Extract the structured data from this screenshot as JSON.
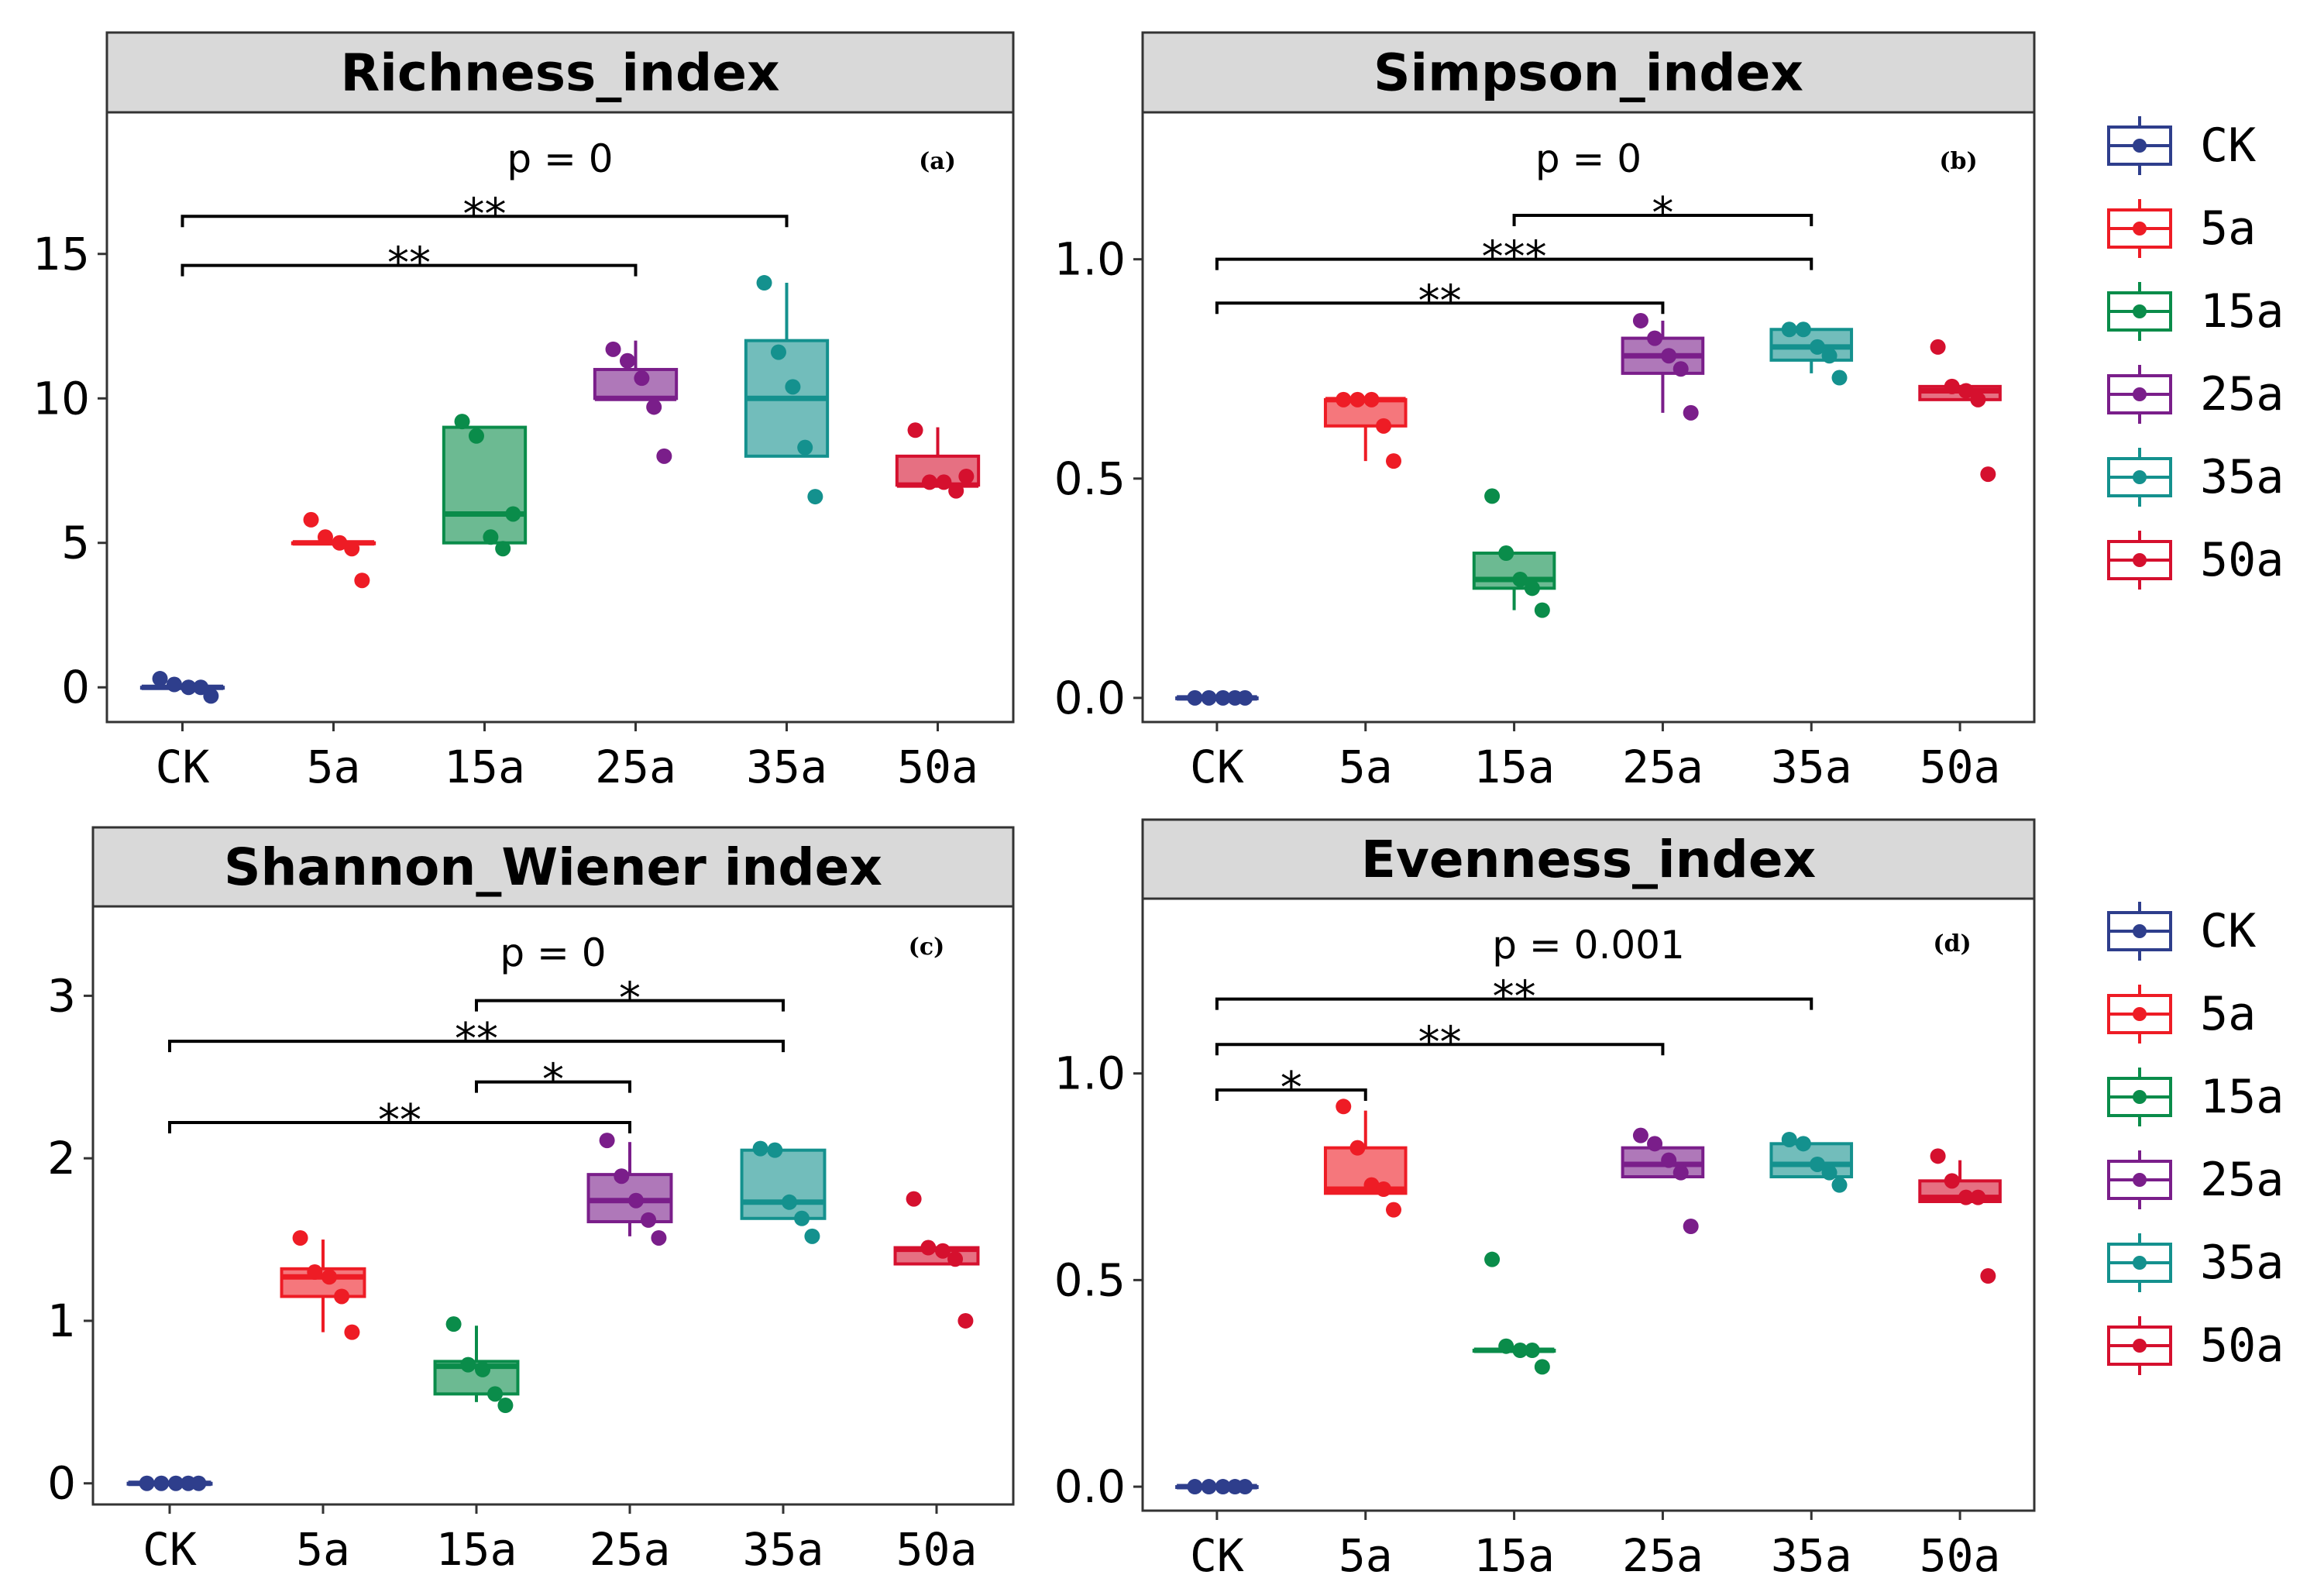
{
  "colors": {
    "CK": "#2E3E8C",
    "5a": "#EE1C25",
    "15a": "#0A8C4A",
    "25a": "#7A1E8A",
    "35a": "#14918E",
    "50a": "#D5102E"
  },
  "legend": [
    "CK",
    "5a",
    "15a",
    "25a",
    "35a",
    "50a"
  ],
  "chart_data": [
    {
      "type": "box",
      "title": "Richness_index",
      "panel_label": "(a)",
      "p_text": "p = 0",
      "categories": [
        "CK",
        "5a",
        "15a",
        "25a",
        "35a",
        "50a"
      ],
      "yticks": [
        "0",
        "5",
        "10",
        "15"
      ],
      "ytick_values": [
        0,
        5,
        10,
        15
      ],
      "ylim": [
        -1.2,
        19.9
      ],
      "boxes": [
        {
          "q1": 0,
          "median": 0,
          "q3": 0,
          "min": 0,
          "max": 0
        },
        {
          "q1": 5,
          "median": 5,
          "q3": 5,
          "min": 5,
          "max": 5
        },
        {
          "q1": 5,
          "median": 6,
          "q3": 9,
          "min": 5,
          "max": 9
        },
        {
          "q1": 10,
          "median": 10,
          "q3": 11,
          "min": 10,
          "max": 12
        },
        {
          "q1": 8,
          "median": 10,
          "q3": 12,
          "min": 8,
          "max": 14
        },
        {
          "q1": 7,
          "median": 7,
          "q3": 8,
          "min": 7,
          "max": 9
        }
      ],
      "points": [
        [
          0.3,
          0.1,
          0,
          0,
          -0.3
        ],
        [
          5.8,
          5.2,
          5,
          4.8,
          3.7
        ],
        [
          9.2,
          8.7,
          5.2,
          4.8,
          6
        ],
        [
          11.7,
          11.3,
          10.7,
          9.7,
          8
        ],
        [
          14,
          11.6,
          10.4,
          8.3,
          6.6
        ],
        [
          8.9,
          7.1,
          7.1,
          6.8,
          7.3
        ]
      ],
      "comparisons": [
        {
          "from": "CK",
          "to": "25a",
          "y": 14.6,
          "label": "**"
        },
        {
          "from": "CK",
          "to": "35a",
          "y": 16.3,
          "label": "**"
        }
      ]
    },
    {
      "type": "box",
      "title": "Simpson_index",
      "panel_label": "(b)",
      "p_text": "p = 0",
      "categories": [
        "CK",
        "5a",
        "15a",
        "25a",
        "35a",
        "50a"
      ],
      "yticks": [
        "0.0",
        "0.5",
        "1.0"
      ],
      "ytick_values": [
        0,
        0.5,
        1.0
      ],
      "ylim": [
        -0.055,
        1.335
      ],
      "boxes": [
        {
          "q1": 0,
          "median": 0,
          "q3": 0,
          "min": 0,
          "max": 0
        },
        {
          "q1": 0.62,
          "median": 0.68,
          "q3": 0.68,
          "min": 0.54,
          "max": 0.68
        },
        {
          "q1": 0.25,
          "median": 0.27,
          "q3": 0.33,
          "min": 0.2,
          "max": 0.33
        },
        {
          "q1": 0.74,
          "median": 0.78,
          "q3": 0.82,
          "min": 0.65,
          "max": 0.86
        },
        {
          "q1": 0.77,
          "median": 0.8,
          "q3": 0.84,
          "min": 0.74,
          "max": 0.84
        },
        {
          "q1": 0.68,
          "median": 0.7,
          "q3": 0.71,
          "min": 0.68,
          "max": 0.71
        }
      ],
      "points": [
        [
          0,
          0,
          0,
          0,
          0
        ],
        [
          0.68,
          0.68,
          0.68,
          0.62,
          0.54
        ],
        [
          0.46,
          0.33,
          0.27,
          0.25,
          0.2
        ],
        [
          0.86,
          0.82,
          0.78,
          0.75,
          0.65
        ],
        [
          0.84,
          0.84,
          0.8,
          0.78,
          0.73
        ],
        [
          0.8,
          0.71,
          0.7,
          0.68,
          0.51
        ]
      ],
      "comparisons": [
        {
          "from": "CK",
          "to": "25a",
          "y": 0.9,
          "label": "**"
        },
        {
          "from": "CK",
          "to": "35a",
          "y": 1.0,
          "label": "***"
        },
        {
          "from": "15a",
          "to": "35a",
          "y": 1.1,
          "label": "*"
        }
      ]
    },
    {
      "type": "box",
      "title": "Shannon_Wiener index",
      "panel_label": "(c)",
      "p_text": "p = 0",
      "categories": [
        "CK",
        "5a",
        "15a",
        "25a",
        "35a",
        "50a"
      ],
      "yticks": [
        "0",
        "1",
        "2",
        "3"
      ],
      "ytick_values": [
        0,
        1,
        2,
        3
      ],
      "ylim": [
        -0.13,
        3.55
      ],
      "boxes": [
        {
          "q1": 0,
          "median": 0,
          "q3": 0,
          "min": 0,
          "max": 0
        },
        {
          "q1": 1.15,
          "median": 1.27,
          "q3": 1.32,
          "min": 0.93,
          "max": 1.5
        },
        {
          "q1": 0.55,
          "median": 0.72,
          "q3": 0.75,
          "min": 0.5,
          "max": 0.97
        },
        {
          "q1": 1.61,
          "median": 1.74,
          "q3": 1.9,
          "min": 1.52,
          "max": 2.1
        },
        {
          "q1": 1.63,
          "median": 1.73,
          "q3": 2.05,
          "min": 1.63,
          "max": 2.05
        },
        {
          "q1": 1.35,
          "median": 1.44,
          "q3": 1.45,
          "min": 1.35,
          "max": 1.45
        }
      ],
      "points": [
        [
          0,
          0,
          0,
          0,
          0
        ],
        [
          1.51,
          1.3,
          1.27,
          1.15,
          0.93
        ],
        [
          0.98,
          0.73,
          0.7,
          0.55,
          0.48
        ],
        [
          2.11,
          1.89,
          1.74,
          1.62,
          1.51
        ],
        [
          2.06,
          2.05,
          1.73,
          1.63,
          1.52
        ],
        [
          1.75,
          1.45,
          1.43,
          1.38,
          1.0
        ]
      ],
      "comparisons": [
        {
          "from": "CK",
          "to": "25a",
          "y": 2.22,
          "label": "**"
        },
        {
          "from": "15a",
          "to": "25a",
          "y": 2.47,
          "label": "*"
        },
        {
          "from": "CK",
          "to": "35a",
          "y": 2.72,
          "label": "**"
        },
        {
          "from": "15a",
          "to": "35a",
          "y": 2.97,
          "label": "*"
        }
      ]
    },
    {
      "type": "box",
      "title": "Evenness_index",
      "panel_label": "(d)",
      "p_text": "p = 0.001",
      "categories": [
        "CK",
        "5a",
        "15a",
        "25a",
        "35a",
        "50a"
      ],
      "yticks": [
        "0.0",
        "0.5",
        "1.0"
      ],
      "ytick_values": [
        0,
        0.5,
        1.0
      ],
      "ylim": [
        -0.058,
        1.423
      ],
      "boxes": [
        {
          "q1": 0,
          "median": 0,
          "q3": 0,
          "min": 0,
          "max": 0
        },
        {
          "q1": 0.71,
          "median": 0.72,
          "q3": 0.82,
          "min": 0.71,
          "max": 0.91
        },
        {
          "q1": 0.33,
          "median": 0.33,
          "q3": 0.33,
          "min": 0.33,
          "max": 0.33
        },
        {
          "q1": 0.75,
          "median": 0.78,
          "q3": 0.82,
          "min": 0.75,
          "max": 0.82
        },
        {
          "q1": 0.75,
          "median": 0.78,
          "q3": 0.83,
          "min": 0.75,
          "max": 0.83
        },
        {
          "q1": 0.69,
          "median": 0.7,
          "q3": 0.74,
          "min": 0.69,
          "max": 0.79
        }
      ],
      "points": [
        [
          0,
          0,
          0,
          0,
          0
        ],
        [
          0.92,
          0.82,
          0.73,
          0.72,
          0.67
        ],
        [
          0.55,
          0.34,
          0.33,
          0.33,
          0.29
        ],
        [
          0.85,
          0.83,
          0.79,
          0.76,
          0.63
        ],
        [
          0.84,
          0.83,
          0.78,
          0.76,
          0.73
        ],
        [
          0.8,
          0.74,
          0.7,
          0.7,
          0.51
        ]
      ],
      "comparisons": [
        {
          "from": "CK",
          "to": "5a",
          "y": 0.96,
          "label": "*"
        },
        {
          "from": "CK",
          "to": "25a",
          "y": 1.07,
          "label": "**"
        },
        {
          "from": "CK",
          "to": "35a",
          "y": 1.18,
          "label": "**"
        }
      ]
    }
  ]
}
